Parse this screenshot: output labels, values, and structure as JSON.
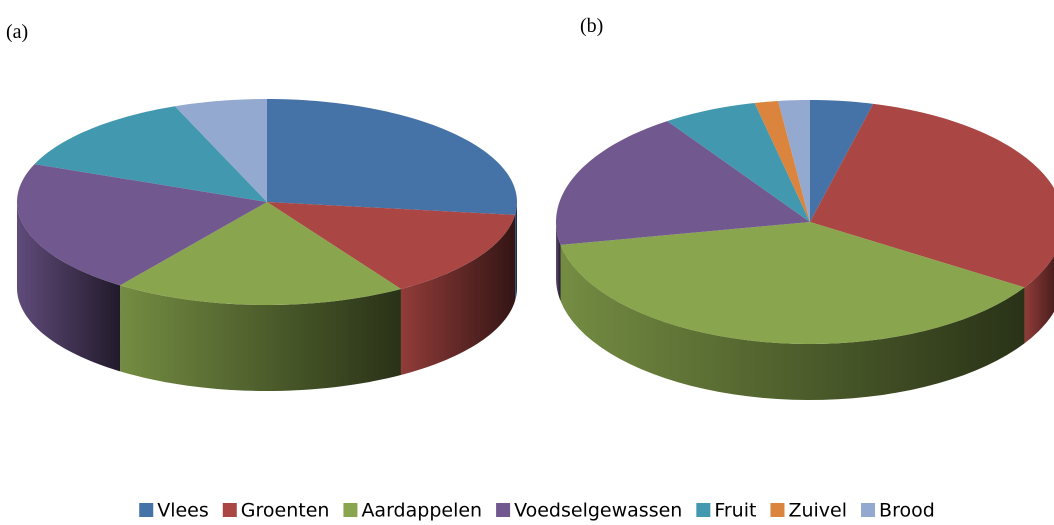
{
  "chart_data": [
    {
      "type": "pie",
      "title": "(a)",
      "categories": [
        "Vlees",
        "Groenten",
        "Aardappelen",
        "Voedselgewassen",
        "Fruit",
        "Zuivel",
        "Brood"
      ],
      "values": [
        27,
        14,
        19,
        21,
        13,
        0,
        6
      ],
      "colors": [
        "#4572a7",
        "#aa4643",
        "#89a54e",
        "#71588f",
        "#4198af",
        "#db843d",
        "#93a9cf"
      ]
    },
    {
      "type": "pie",
      "title": "(b)",
      "categories": [
        "Vlees",
        "Groenten",
        "Aardappelen",
        "Voedselgewassen",
        "Fruit",
        "Zuivel",
        "Brood"
      ],
      "values": [
        4,
        30,
        38,
        18.5,
        6,
        1.5,
        2
      ],
      "colors": [
        "#4572a7",
        "#aa4643",
        "#89a54e",
        "#71588f",
        "#4198af",
        "#db843d",
        "#93a9cf"
      ]
    }
  ]
}
